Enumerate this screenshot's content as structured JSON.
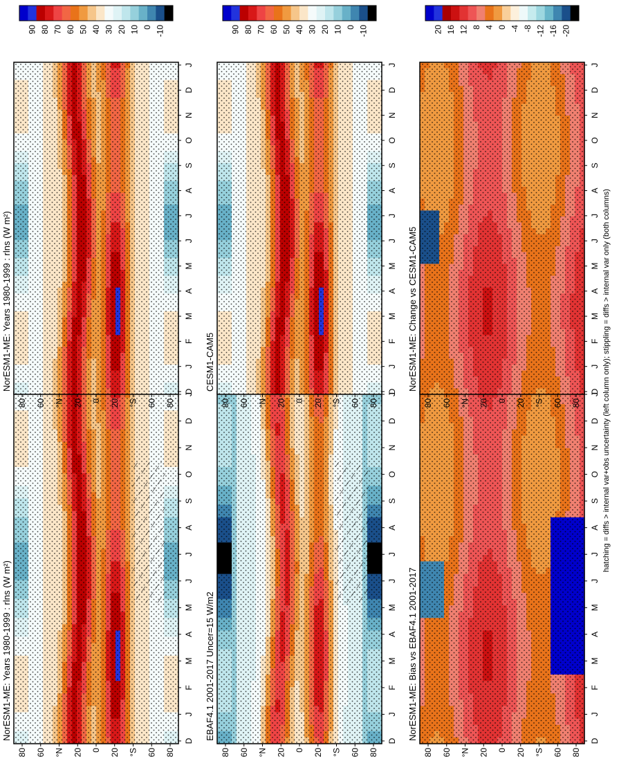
{
  "figure": {
    "caption": "hatching = diffs > internal var+obs uncertainty (left column only); stippling = diffs > internal var only (both columns)"
  },
  "colors": {
    "abs_scale": [
      "#0000cc",
      "#2233dd",
      "#bb0000",
      "#d81818",
      "#ee4444",
      "#f26644",
      "#e9731a",
      "#f09a40",
      "#f6c68a",
      "#fbe6c8",
      "#f5fbfb",
      "#dff3f5",
      "#bfe6ec",
      "#96d0dc",
      "#68b1c8",
      "#3f86b0",
      "#1a4f8a",
      "#000000"
    ],
    "diff_scale": [
      "#0000cc",
      "#2233dd",
      "#aa0000",
      "#cc1111",
      "#e23333",
      "#ee5555",
      "#f08070",
      "#e9731a",
      "#f09a40",
      "#f9cf9a",
      "#fdf0dc",
      "#eef9fa",
      "#c6ebee",
      "#9dd7e0",
      "#69b6ca",
      "#3f86b0",
      "#1a4f8a",
      "#000000"
    ]
  },
  "chart_data": [
    {
      "id": "norm-left",
      "type": "heatmap",
      "title": "NorESM1-ME: Years 1980-1999 : rlns (W m²)",
      "x_ticks": [
        "D",
        "J",
        "F",
        "M",
        "A",
        "M",
        "J",
        "J",
        "A",
        "S",
        "O",
        "N",
        "D",
        "J"
      ],
      "y_ticks": [
        "80",
        "60",
        "°N",
        "20",
        "0",
        "20",
        "°S",
        "60",
        "80"
      ],
      "colorbar": {
        "labels": [
          "90",
          "80",
          "70",
          "60",
          "50",
          "40",
          "30",
          "20",
          "10",
          "0",
          "-10"
        ],
        "scale": "abs"
      },
      "style": "abs",
      "hatch": true
    },
    {
      "id": "norm-right",
      "type": "heatmap",
      "title": "NorESM1-ME: Years 1980-1999 : rlns (W m²)",
      "x_ticks": [
        "D",
        "J",
        "F",
        "M",
        "A",
        "M",
        "J",
        "J",
        "A",
        "S",
        "O",
        "N",
        "D",
        "J"
      ],
      "y_ticks": [
        "80",
        "60",
        "°N",
        "20",
        "0",
        "20",
        "°S",
        "60",
        "80"
      ],
      "colorbar": {
        "labels": [
          "90",
          "80",
          "70",
          "60",
          "50",
          "40",
          "30",
          "20",
          "10",
          "0",
          "-10"
        ],
        "scale": "abs"
      },
      "style": "abs",
      "hatch": false
    },
    {
      "id": "ebaf",
      "type": "heatmap",
      "title": "EBAF4.1 2001-2017 Uncer=15 W/m2",
      "x_ticks": [
        "D",
        "J",
        "F",
        "M",
        "A",
        "M",
        "J",
        "J",
        "A",
        "S",
        "O",
        "N",
        "D",
        "J"
      ],
      "y_ticks": [
        "80",
        "60",
        "°N",
        "20",
        "0",
        "20",
        "°S",
        "60",
        "80"
      ],
      "colorbar": {
        "labels": [
          "90",
          "80",
          "70",
          "60",
          "50",
          "40",
          "30",
          "20",
          "10",
          "0",
          "-10"
        ],
        "scale": "abs"
      },
      "style": "obs",
      "hatch": true
    },
    {
      "id": "cesm",
      "type": "heatmap",
      "title": "CESM1-CAM5",
      "x_ticks": [
        "D",
        "J",
        "F",
        "M",
        "A",
        "M",
        "J",
        "J",
        "A",
        "S",
        "O",
        "N",
        "D",
        "J"
      ],
      "y_ticks": [
        "80",
        "60",
        "°N",
        "20",
        "0",
        "20",
        "°S",
        "60",
        "80"
      ],
      "colorbar": {
        "labels": [
          "90",
          "80",
          "70",
          "60",
          "50",
          "40",
          "30",
          "20",
          "10",
          "0",
          "-10"
        ],
        "scale": "abs"
      },
      "style": "abs2",
      "hatch": false
    },
    {
      "id": "bias",
      "type": "heatmap",
      "title": "NorESM1-ME: Bias vs EBAF4.1 2001-2017",
      "x_ticks": [
        "D",
        "J",
        "F",
        "M",
        "A",
        "M",
        "J",
        "J",
        "A",
        "S",
        "O",
        "N",
        "D",
        "J"
      ],
      "y_ticks": [
        "80",
        "60",
        "°N",
        "20",
        "0",
        "20",
        "°S",
        "60",
        "80"
      ],
      "colorbar": {
        "labels": [
          "20",
          "16",
          "12",
          "8",
          "4",
          "0",
          "-4",
          "-8",
          "-12",
          "-16",
          "-20"
        ],
        "scale": "diff"
      },
      "style": "bias",
      "hatch": false
    },
    {
      "id": "change",
      "type": "heatmap",
      "title": "NorESM1-ME: Change vs CESM1-CAM5",
      "x_ticks": [
        "D",
        "J",
        "F",
        "M",
        "A",
        "M",
        "J",
        "J",
        "A",
        "S",
        "O",
        "N",
        "D",
        "J"
      ],
      "y_ticks": [
        "80",
        "60",
        "°N",
        "20",
        "0",
        "20",
        "°S",
        "60",
        "80"
      ],
      "colorbar": {
        "labels": [
          "20",
          "16",
          "12",
          "8",
          "4",
          "0",
          "-4",
          "-8",
          "-12",
          "-16",
          "-20"
        ],
        "scale": "diff"
      },
      "style": "change",
      "hatch": false
    }
  ]
}
